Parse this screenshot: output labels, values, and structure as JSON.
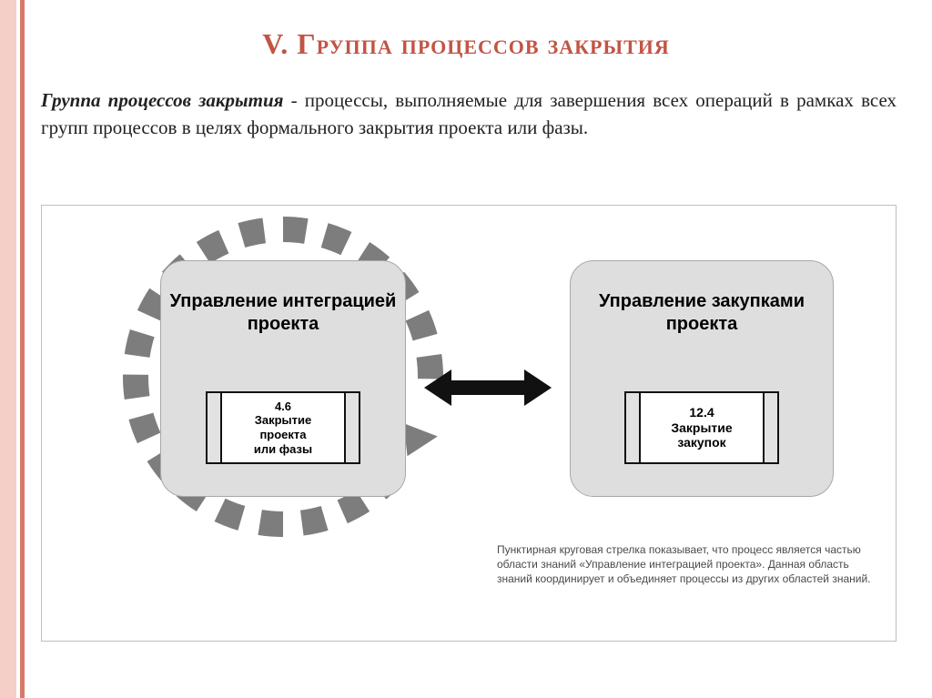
{
  "colors": {
    "bar_outer": "#f4cfc7",
    "bar_inner": "#d77a6a",
    "title_color": "#c25445",
    "body_text": "#222222",
    "box_fill": "#dedede",
    "box_stroke": "#a8a8a8",
    "dash_color": "#7d7d7d",
    "arrow_color": "#111111",
    "footnote_color": "#4a4a4a",
    "panel_border": "#bfbfbf"
  },
  "title": {
    "text": "V. Группа процессов закрытия",
    "fontsize": 32
  },
  "definition": {
    "bold_lead": "Группа процессов закрытия",
    "rest": " - процессы, выполняемые для завершения всех операций в рамках всех групп процессов в целях формального закрытия проекта или фазы.",
    "fontsize": 21
  },
  "left_box": {
    "heading": "Управление интеграцией проекта",
    "heading_fontsize": 20,
    "doc_number": "4.6",
    "doc_label_1": "Закрытие",
    "doc_label_2": "проекта",
    "doc_label_3": "или фазы",
    "doc_fontsize": 13
  },
  "right_box": {
    "heading": "Управление закупками проекта",
    "heading_fontsize": 20,
    "doc_number": "12.4",
    "doc_label_1": "Закрытие",
    "doc_label_2": "закупок",
    "doc_fontsize": 14
  },
  "footnote": {
    "text": "Пунктирная круговая стрелка показывает, что процесс является частью области знаний «Управление интеграцией проекта». Данная область знаний координирует и объединяет процессы из других областей знаний.",
    "fontsize": 12
  },
  "dashed_ring": {
    "outer_radius": 176,
    "inner_radius": 148,
    "dash_count": 22
  }
}
